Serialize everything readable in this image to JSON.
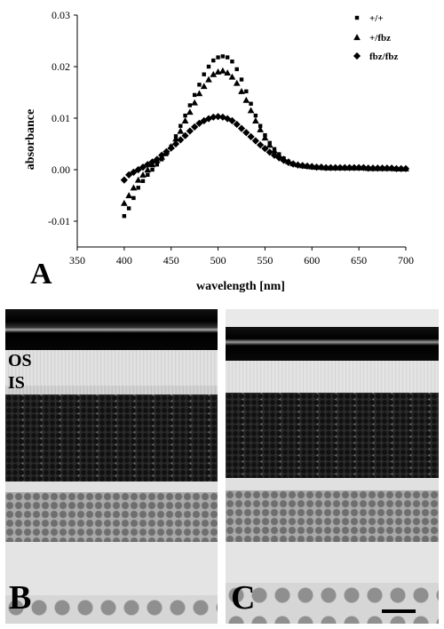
{
  "panels": {
    "a_label": "A",
    "b_label": "B",
    "c_label": "C"
  },
  "micrograph_b": {
    "layer_labels": [
      "OS",
      "IS"
    ]
  },
  "chart_data": {
    "type": "scatter",
    "title": "",
    "xlabel": "wavelength [nm]",
    "ylabel": "absorbance",
    "xlim": [
      350,
      700
    ],
    "ylim": [
      -0.015,
      0.03
    ],
    "xticks": [
      350,
      400,
      450,
      500,
      550,
      600,
      650,
      700
    ],
    "yticks": [
      -0.01,
      0.0,
      0.01,
      0.02,
      0.03
    ],
    "ytick_labels": [
      "-0.01",
      "0.00",
      "0.01",
      "0.02",
      "0.03"
    ],
    "grid": false,
    "legend_position": "top-right",
    "x": [
      400,
      405,
      410,
      415,
      420,
      425,
      430,
      435,
      440,
      445,
      450,
      455,
      460,
      465,
      470,
      475,
      480,
      485,
      490,
      495,
      500,
      505,
      510,
      515,
      520,
      525,
      530,
      535,
      540,
      545,
      550,
      555,
      560,
      565,
      570,
      575,
      580,
      585,
      590,
      595,
      600,
      605,
      610,
      615,
      620,
      625,
      630,
      635,
      640,
      645,
      650,
      655,
      660,
      665,
      670,
      675,
      680,
      685,
      690,
      695,
      700
    ],
    "series": [
      {
        "name": "+/+",
        "marker": "square",
        "values": [
          -0.009,
          -0.0075,
          -0.0055,
          -0.0035,
          -0.0022,
          -0.001,
          0.0,
          0.001,
          0.002,
          0.003,
          0.0045,
          0.0065,
          0.0085,
          0.0105,
          0.0125,
          0.0145,
          0.0165,
          0.0185,
          0.02,
          0.0212,
          0.0218,
          0.022,
          0.0218,
          0.021,
          0.0195,
          0.0175,
          0.0152,
          0.0128,
          0.0105,
          0.0085,
          0.0067,
          0.0052,
          0.004,
          0.003,
          0.0022,
          0.0016,
          0.0012,
          0.0009,
          0.0008,
          0.0007,
          0.0006,
          0.0005,
          0.0005,
          0.0004,
          0.0004,
          0.0004,
          0.0004,
          0.0004,
          0.0004,
          0.0004,
          0.0004,
          0.0004,
          0.0003,
          0.0003,
          0.0003,
          0.0003,
          0.0003,
          0.0003,
          0.0002,
          0.0002,
          0.0002
        ]
      },
      {
        "name": "+/fbz",
        "marker": "triangle",
        "values": [
          -0.0065,
          -0.005,
          -0.0035,
          -0.002,
          -0.001,
          0.0,
          0.001,
          0.0018,
          0.0025,
          0.0035,
          0.0045,
          0.006,
          0.0075,
          0.0095,
          0.0112,
          0.013,
          0.0148,
          0.0162,
          0.0175,
          0.0185,
          0.019,
          0.0192,
          0.0188,
          0.018,
          0.0168,
          0.0152,
          0.0135,
          0.0115,
          0.0095,
          0.0078,
          0.0062,
          0.0048,
          0.0037,
          0.0028,
          0.0021,
          0.0016,
          0.0012,
          0.001,
          0.0008,
          0.0007,
          0.0006,
          0.0005,
          0.0005,
          0.0004,
          0.0004,
          0.0004,
          0.0004,
          0.0004,
          0.0004,
          0.0004,
          0.0004,
          0.0004,
          0.0003,
          0.0003,
          0.0003,
          0.0003,
          0.0003,
          0.0003,
          0.0002,
          0.0002,
          0.0002
        ]
      },
      {
        "name": "fbz/fbz",
        "marker": "diamond",
        "values": [
          -0.002,
          -0.001,
          -0.0005,
          0.0,
          0.0005,
          0.001,
          0.0015,
          0.002,
          0.0028,
          0.0035,
          0.0042,
          0.005,
          0.0058,
          0.0066,
          0.0075,
          0.0083,
          0.009,
          0.0095,
          0.0099,
          0.0102,
          0.0103,
          0.0102,
          0.0099,
          0.0095,
          0.0088,
          0.008,
          0.0072,
          0.0064,
          0.0056,
          0.0048,
          0.0041,
          0.0034,
          0.0028,
          0.0023,
          0.0018,
          0.0014,
          0.0011,
          0.0009,
          0.0008,
          0.0007,
          0.0006,
          0.0005,
          0.0005,
          0.0004,
          0.0004,
          0.0004,
          0.0004,
          0.0004,
          0.0004,
          0.0004,
          0.0004,
          0.0004,
          0.0003,
          0.0003,
          0.0003,
          0.0003,
          0.0003,
          0.0003,
          0.0002,
          0.0002,
          0.0002
        ]
      }
    ]
  }
}
